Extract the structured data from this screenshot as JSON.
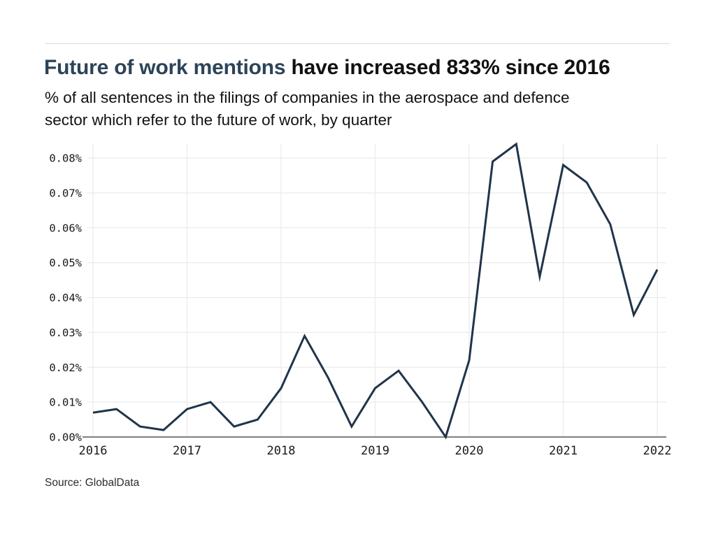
{
  "header": {
    "title_highlight": "Future of work mentions",
    "title_rest": "have increased 833% since 2016",
    "subtitle_lines": [
      "% of all sentences in the filings of companies in the aerospace and defence",
      "sector which refer to the future of work, by quarter"
    ]
  },
  "footer": {
    "source": "Source: GlobalData"
  },
  "colors": {
    "line": "#20344a",
    "grid": "#ebebeb",
    "axis": "#7f7f7f",
    "tick_text": "#1a1a1a",
    "title_highlight": "#2d4358"
  },
  "chart_data": {
    "type": "line",
    "title": "Future of work mentions have increased 833% since 2016",
    "subtitle": "% of all sentences in the filings of companies in the aerospace and defence sector which refer to the future of work, by quarter",
    "xlabel": "",
    "ylabel": "% of all sentences",
    "ylim": [
      0,
      0.084
    ],
    "grid": true,
    "legend": "none",
    "categories": [
      "2016 Q1",
      "2016 Q2",
      "2016 Q3",
      "2016 Q4",
      "2017 Q1",
      "2017 Q2",
      "2017 Q3",
      "2017 Q4",
      "2018 Q1",
      "2018 Q2",
      "2018 Q3",
      "2018 Q4",
      "2019 Q1",
      "2019 Q2",
      "2019 Q3",
      "2019 Q4",
      "2020 Q1",
      "2020 Q2",
      "2020 Q3",
      "2020 Q4",
      "2021 Q1",
      "2021 Q2",
      "2021 Q3",
      "2021 Q4",
      "2022 Q1"
    ],
    "values": [
      0.007,
      0.008,
      0.003,
      0.002,
      0.008,
      0.01,
      0.003,
      0.005,
      0.014,
      0.029,
      0.017,
      0.003,
      0.014,
      0.019,
      0.01,
      0.0,
      0.022,
      0.079,
      0.084,
      0.046,
      0.078,
      0.073,
      0.061,
      0.035,
      0.048
    ],
    "y_tick_labels": [
      "0.00%",
      "0.01%",
      "0.02%",
      "0.03%",
      "0.04%",
      "0.05%",
      "0.06%",
      "0.07%",
      "0.08%"
    ],
    "x_tick_labels": [
      "2016",
      "2017",
      "2018",
      "2019",
      "2020",
      "2021",
      "2022"
    ],
    "x_tick_indices": [
      0,
      4,
      8,
      12,
      16,
      20,
      24
    ]
  }
}
